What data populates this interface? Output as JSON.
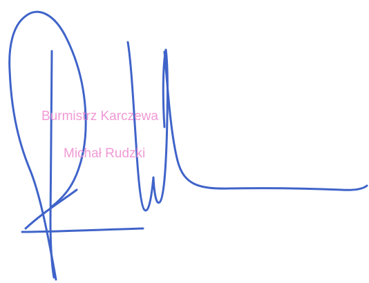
{
  "stamp": {
    "title": "Burmistrz Karczewa",
    "name": "Michał Rudzki"
  },
  "colors": {
    "ink": "#3f63c9",
    "stamp": "#ef8ccf",
    "background": "#ffffff"
  }
}
